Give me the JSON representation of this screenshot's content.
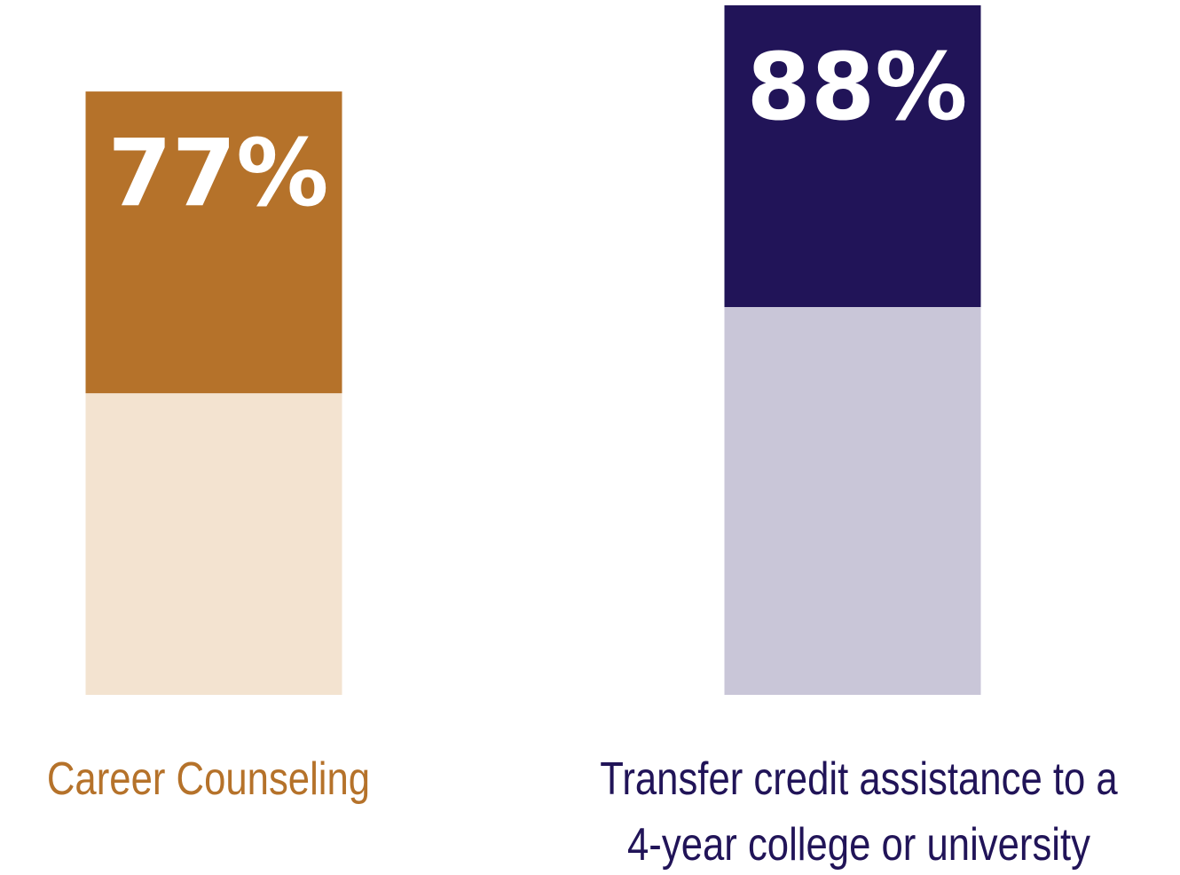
{
  "chart_data": {
    "type": "bar",
    "categories": [
      "Career Counseling",
      "Transfer credit assistance to a 4-year college or university"
    ],
    "values": [
      77,
      88
    ],
    "value_labels": [
      "77%",
      "88%"
    ],
    "colors": [
      "#b5722a",
      "#211458"
    ],
    "light_colors": [
      "#f3e3d0",
      "#c9c6d8"
    ]
  }
}
